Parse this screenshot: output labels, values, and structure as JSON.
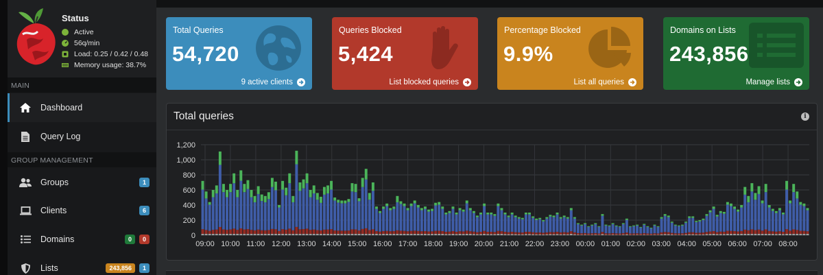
{
  "status": {
    "title": "Status",
    "active": "Active",
    "rate": "56q/min",
    "load": "Load: 0.25 / 0.42 / 0.48",
    "memory": "Memory usage: 38.7%"
  },
  "sidebar": {
    "main_header": "MAIN",
    "group_header": "GROUP MANAGEMENT",
    "items": [
      {
        "label": "Dashboard"
      },
      {
        "label": "Query Log"
      },
      {
        "label": "Groups",
        "badge": "1"
      },
      {
        "label": "Clients",
        "badge": "6"
      },
      {
        "label": "Domains",
        "badge_allow": "0",
        "badge_deny": "0"
      },
      {
        "label": "Lists",
        "badge_count": "243,856",
        "badge": "1"
      }
    ]
  },
  "boxes": [
    {
      "label": "Total Queries",
      "value": "54,720",
      "footer": "9 active clients",
      "color": "#3c8dbc",
      "icon": "globe-icon"
    },
    {
      "label": "Queries Blocked",
      "value": "5,424",
      "footer": "List blocked queries",
      "color": "#b2392b",
      "icon": "hand-icon"
    },
    {
      "label": "Percentage Blocked",
      "value": "9.9%",
      "footer": "List all queries",
      "color": "#c9841e",
      "icon": "pie-chart-icon"
    },
    {
      "label": "Domains on Lists",
      "value": "243,856",
      "footer": "Manage lists",
      "color": "#1f6b33",
      "icon": "list-icon"
    }
  ],
  "panel": {
    "title": "Total queries"
  },
  "chart_data": {
    "type": "bar",
    "stacked": true,
    "ylim": [
      0,
      1200
    ],
    "yticks": [
      0,
      200,
      400,
      600,
      800,
      1000,
      1200
    ],
    "ytick_labels": [
      "0",
      "200",
      "400",
      "600",
      "800",
      "1,000",
      "1,200"
    ],
    "xtick_labels": [
      "09:00",
      "10:00",
      "11:00",
      "12:00",
      "13:00",
      "14:00",
      "15:00",
      "16:00",
      "17:00",
      "18:00",
      "19:00",
      "20:00",
      "21:00",
      "22:00",
      "23:00",
      "00:00",
      "01:00",
      "02:00",
      "03:00",
      "04:00",
      "05:00",
      "06:00",
      "07:00",
      "08:00"
    ],
    "colors": {
      "other": "#9e9e9e",
      "blocked": "#932b24",
      "cached": "#3f5da8",
      "forwarded": "#4bb45a"
    },
    "totals": [
      720,
      580,
      440,
      600,
      660,
      1110,
      680,
      600,
      680,
      820,
      600,
      860,
      680,
      730,
      600,
      520,
      650,
      540,
      520,
      570,
      760,
      710,
      400,
      720,
      630,
      820,
      520,
      1120,
      700,
      740,
      820,
      600,
      660,
      560,
      510,
      640,
      660,
      720,
      500,
      470,
      460,
      460,
      480,
      690,
      680,
      490,
      760,
      880,
      560,
      700,
      380,
      320,
      380,
      420,
      360,
      380,
      520,
      450,
      420,
      360,
      420,
      460,
      400,
      360,
      380,
      340,
      350,
      430,
      440,
      380,
      300,
      320,
      380,
      300,
      360,
      340,
      460,
      360,
      320,
      260,
      300,
      420,
      300,
      300,
      280,
      420,
      360,
      300,
      260,
      300,
      260,
      240,
      230,
      300,
      300,
      250,
      220,
      230,
      200,
      240,
      270,
      260,
      300,
      240,
      260,
      240,
      360,
      240,
      160,
      140,
      160,
      120,
      140,
      160,
      120,
      280,
      140,
      130,
      160,
      130,
      120,
      160,
      220,
      120,
      130,
      140,
      110,
      150,
      120,
      100,
      140,
      120,
      240,
      280,
      260,
      180,
      140,
      130,
      140,
      180,
      250,
      250,
      190,
      200,
      220,
      280,
      330,
      380,
      270,
      320,
      310,
      440,
      420,
      380,
      340,
      400,
      640,
      520,
      690,
      560,
      650,
      460,
      680,
      400,
      350,
      320,
      360,
      300,
      720,
      460,
      680,
      580,
      440,
      420,
      360
    ]
  }
}
